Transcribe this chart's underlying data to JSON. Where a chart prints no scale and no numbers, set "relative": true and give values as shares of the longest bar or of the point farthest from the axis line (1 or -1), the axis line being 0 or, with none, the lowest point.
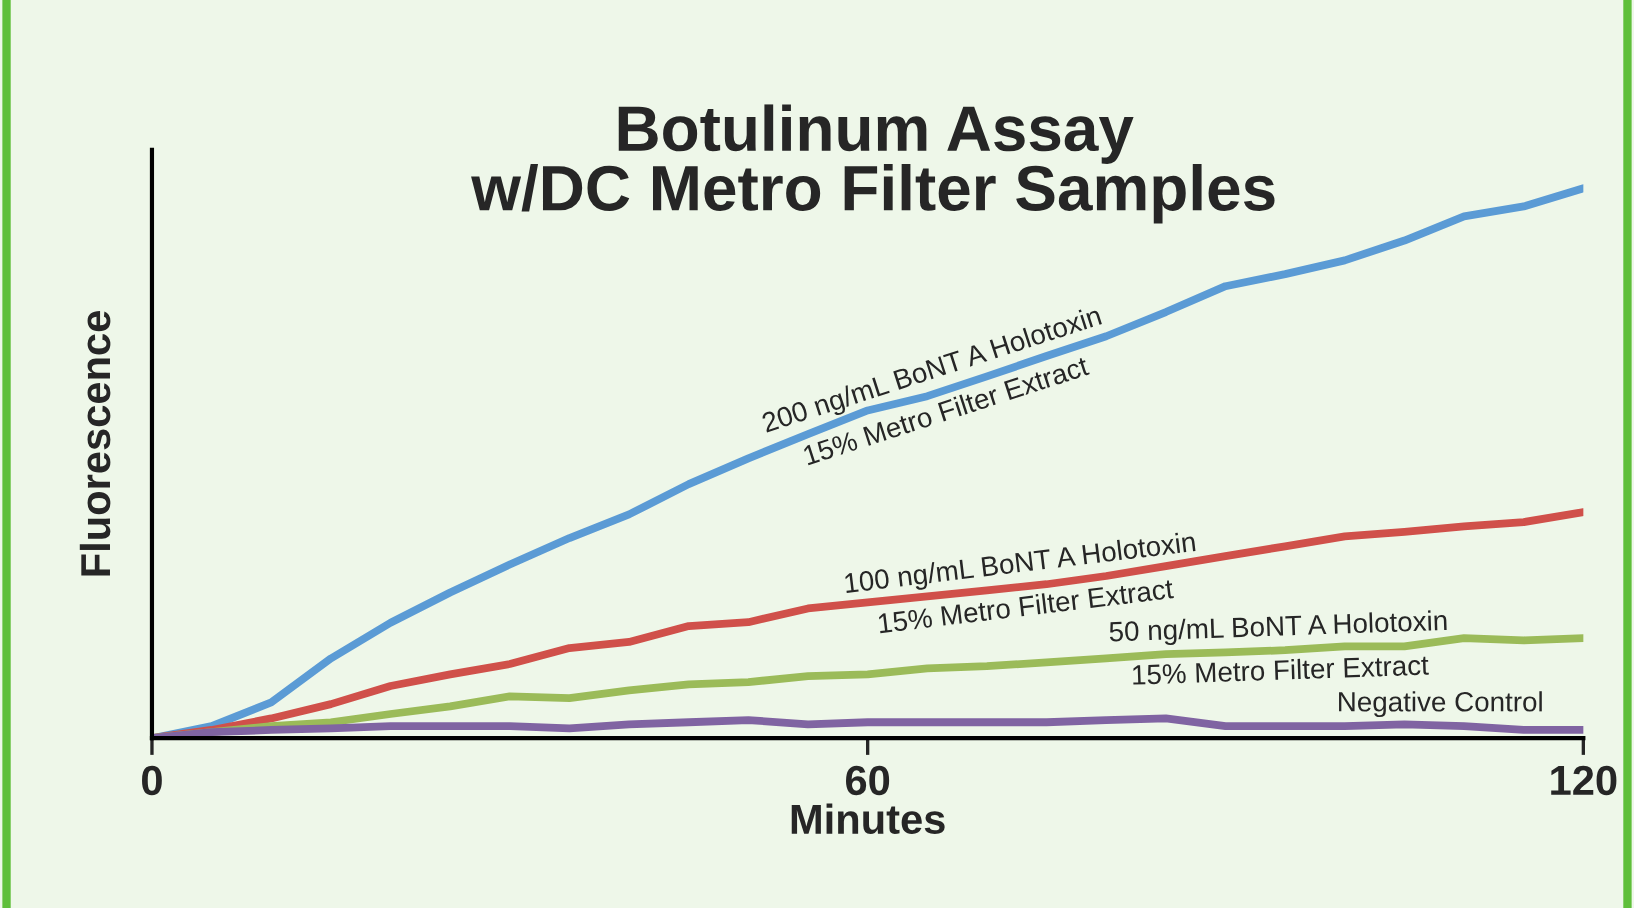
{
  "chart_data": {
    "type": "line",
    "title": "Botulinum Assay\nw/DC Metro Filter Samples",
    "xlabel": "Minutes",
    "ylabel": "Fluorescence",
    "relative": true,
    "x": [
      0,
      5,
      10,
      15,
      20,
      25,
      30,
      35,
      40,
      45,
      50,
      55,
      60,
      65,
      70,
      75,
      80,
      85,
      90,
      95,
      100,
      105,
      110,
      115,
      120
    ],
    "xlim": [
      0,
      120
    ],
    "xticks": [
      0,
      60,
      120
    ],
    "grid": false,
    "legend": false,
    "line_style": "solid",
    "marker": "none",
    "series": [
      {
        "name": "200 ng/mL BoNT A Holotoxin\n15% Metro Filter Extract",
        "color": "#5b9bd5",
        "values": [
          0,
          0.022,
          0.065,
          0.145,
          0.21,
          0.265,
          0.316,
          0.364,
          0.407,
          0.462,
          0.509,
          0.553,
          0.596,
          0.622,
          0.658,
          0.695,
          0.731,
          0.775,
          0.822,
          0.844,
          0.869,
          0.905,
          0.949,
          0.967,
          1
        ]
      },
      {
        "name": "100 ng/mL BoNT A Holotoxin\n15% Metro Filter Extract",
        "color": "#d0504a",
        "values": [
          0,
          0.015,
          0.036,
          0.062,
          0.095,
          0.116,
          0.135,
          0.164,
          0.175,
          0.204,
          0.211,
          0.236,
          0.247,
          0.258,
          0.269,
          0.28,
          0.295,
          0.313,
          0.331,
          0.349,
          0.367,
          0.375,
          0.385,
          0.393,
          0.411
        ]
      },
      {
        "name": "50 ng/mL BoNT A Holotoxin\n15% Metro Filter Extract",
        "color": "#9bbb59",
        "values": [
          0,
          0.011,
          0.022,
          0.029,
          0.044,
          0.058,
          0.076,
          0.073,
          0.087,
          0.098,
          0.102,
          0.113,
          0.116,
          0.127,
          0.131,
          0.138,
          0.145,
          0.153,
          0.156,
          0.16,
          0.167,
          0.167,
          0.182,
          0.178,
          0.182
        ]
      },
      {
        "name": "Negative Control",
        "color": "#8064a2",
        "values": [
          0,
          0.011,
          0.015,
          0.018,
          0.022,
          0.022,
          0.022,
          0.018,
          0.025,
          0.029,
          0.033,
          0.025,
          0.029,
          0.029,
          0.029,
          0.029,
          0.033,
          0.036,
          0.022,
          0.022,
          0.022,
          0.025,
          0.022,
          0.015,
          0.015
        ]
      }
    ]
  }
}
